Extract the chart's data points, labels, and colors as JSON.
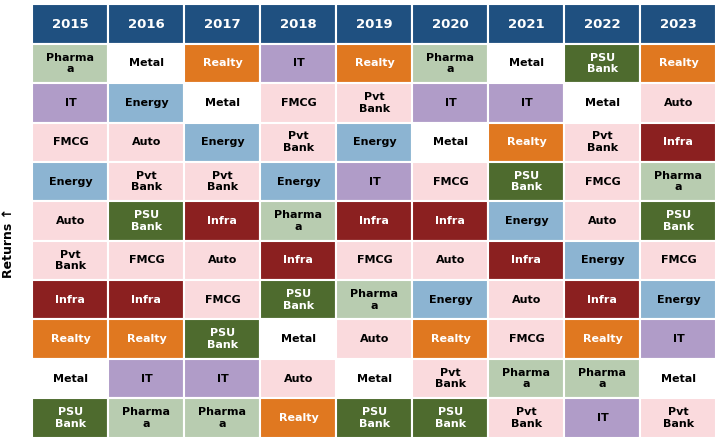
{
  "years": [
    "2015",
    "2016",
    "2017",
    "2018",
    "2019",
    "2020",
    "2021",
    "2022",
    "2023"
  ],
  "header_color": "#1F5080",
  "header_text_color": "#FFFFFF",
  "table": [
    [
      "Pharma\na",
      "Metal",
      "Realty",
      "IT",
      "Realty",
      "Pharma\na",
      "Metal",
      "PSU\nBank",
      "Realty"
    ],
    [
      "IT",
      "Energy",
      "Metal",
      "FMCG",
      "Pvt\nBank",
      "IT",
      "IT",
      "Metal",
      "Auto"
    ],
    [
      "FMCG",
      "Auto",
      "Energy",
      "Pvt\nBank",
      "Energy",
      "Metal",
      "Realty",
      "Pvt\nBank",
      "Infra"
    ],
    [
      "Energy",
      "Pvt\nBank",
      "Pvt\nBank",
      "Energy",
      "IT",
      "FMCG",
      "PSU\nBank",
      "FMCG",
      "Pharma\na"
    ],
    [
      "Auto",
      "PSU\nBank",
      "Infra",
      "Pharma\na",
      "Infra",
      "Infra",
      "Energy",
      "Auto",
      "PSU\nBank"
    ],
    [
      "Pvt\nBank",
      "FMCG",
      "Auto",
      "Infra",
      "FMCG",
      "Auto",
      "Infra",
      "Energy",
      "FMCG"
    ],
    [
      "Infra",
      "Infra",
      "FMCG",
      "PSU\nBank",
      "Pharma\na",
      "Energy",
      "Auto",
      "Infra",
      "Energy"
    ],
    [
      "Realty",
      "Realty",
      "PSU\nBank",
      "Metal",
      "Auto",
      "Realty",
      "FMCG",
      "Realty",
      "IT"
    ],
    [
      "Metal",
      "IT",
      "IT",
      "Auto",
      "Metal",
      "Pvt\nBank",
      "Pharma\na",
      "Pharma\na",
      "Metal"
    ],
    [
      "PSU\nBank",
      "Pharma\na",
      "Pharma\na",
      "Realty",
      "PSU\nBank",
      "PSU\nBank",
      "Pvt\nBank",
      "IT",
      "Pvt\nBank"
    ]
  ],
  "sector_colors": {
    "Pharma\na": "#B8CCB0",
    "Metal": "#FFFFFF",
    "Realty": "#E07820",
    "IT": "#B09CC8",
    "Energy": "#8CB4D2",
    "FMCG": "#FADADD",
    "Pvt\nBank": "#FADADD",
    "Auto": "#FADADD",
    "PSU\nBank": "#4E6B2E",
    "Infra": "#8B2020"
  },
  "sector_text_colors": {
    "Pharma\na": "#000000",
    "Metal": "#000000",
    "Realty": "#FFFFFF",
    "IT": "#000000",
    "Energy": "#000000",
    "FMCG": "#000000",
    "Pvt\nBank": "#000000",
    "Auto": "#000000",
    "PSU\nBank": "#FFFFFF",
    "Infra": "#FFFFFF"
  },
  "ylabel": "Returns ↑",
  "ylabel_fontsize": 9,
  "cell_fontsize": 8.0,
  "header_fontsize": 9.5
}
